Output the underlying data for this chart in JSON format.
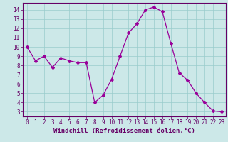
{
  "x": [
    0,
    1,
    2,
    3,
    4,
    5,
    6,
    7,
    8,
    9,
    10,
    11,
    12,
    13,
    14,
    15,
    16,
    17,
    18,
    19,
    20,
    21,
    22,
    23
  ],
  "y": [
    10,
    8.5,
    9,
    7.8,
    8.8,
    8.5,
    8.3,
    8.3,
    4.0,
    4.8,
    6.5,
    9.0,
    11.5,
    12.5,
    14.0,
    14.3,
    13.8,
    10.4,
    7.2,
    6.4,
    5.0,
    4.0,
    3.1,
    3.0
  ],
  "line_color": "#990099",
  "marker": "D",
  "marker_size": 2.0,
  "bg_color": "#cce8e8",
  "grid_color": "#99cccc",
  "xlabel": "Windchill (Refroidissement éolien,°C)",
  "xlim": [
    -0.5,
    23.5
  ],
  "ylim": [
    2.5,
    14.75
  ],
  "yticks": [
    3,
    4,
    5,
    6,
    7,
    8,
    9,
    10,
    11,
    12,
    13,
    14
  ],
  "xticks": [
    0,
    1,
    2,
    3,
    4,
    5,
    6,
    7,
    8,
    9,
    10,
    11,
    12,
    13,
    14,
    15,
    16,
    17,
    18,
    19,
    20,
    21,
    22,
    23
  ],
  "tick_label_size": 5.5,
  "xlabel_size": 6.5,
  "spine_color": "#660066",
  "label_color": "#660066"
}
